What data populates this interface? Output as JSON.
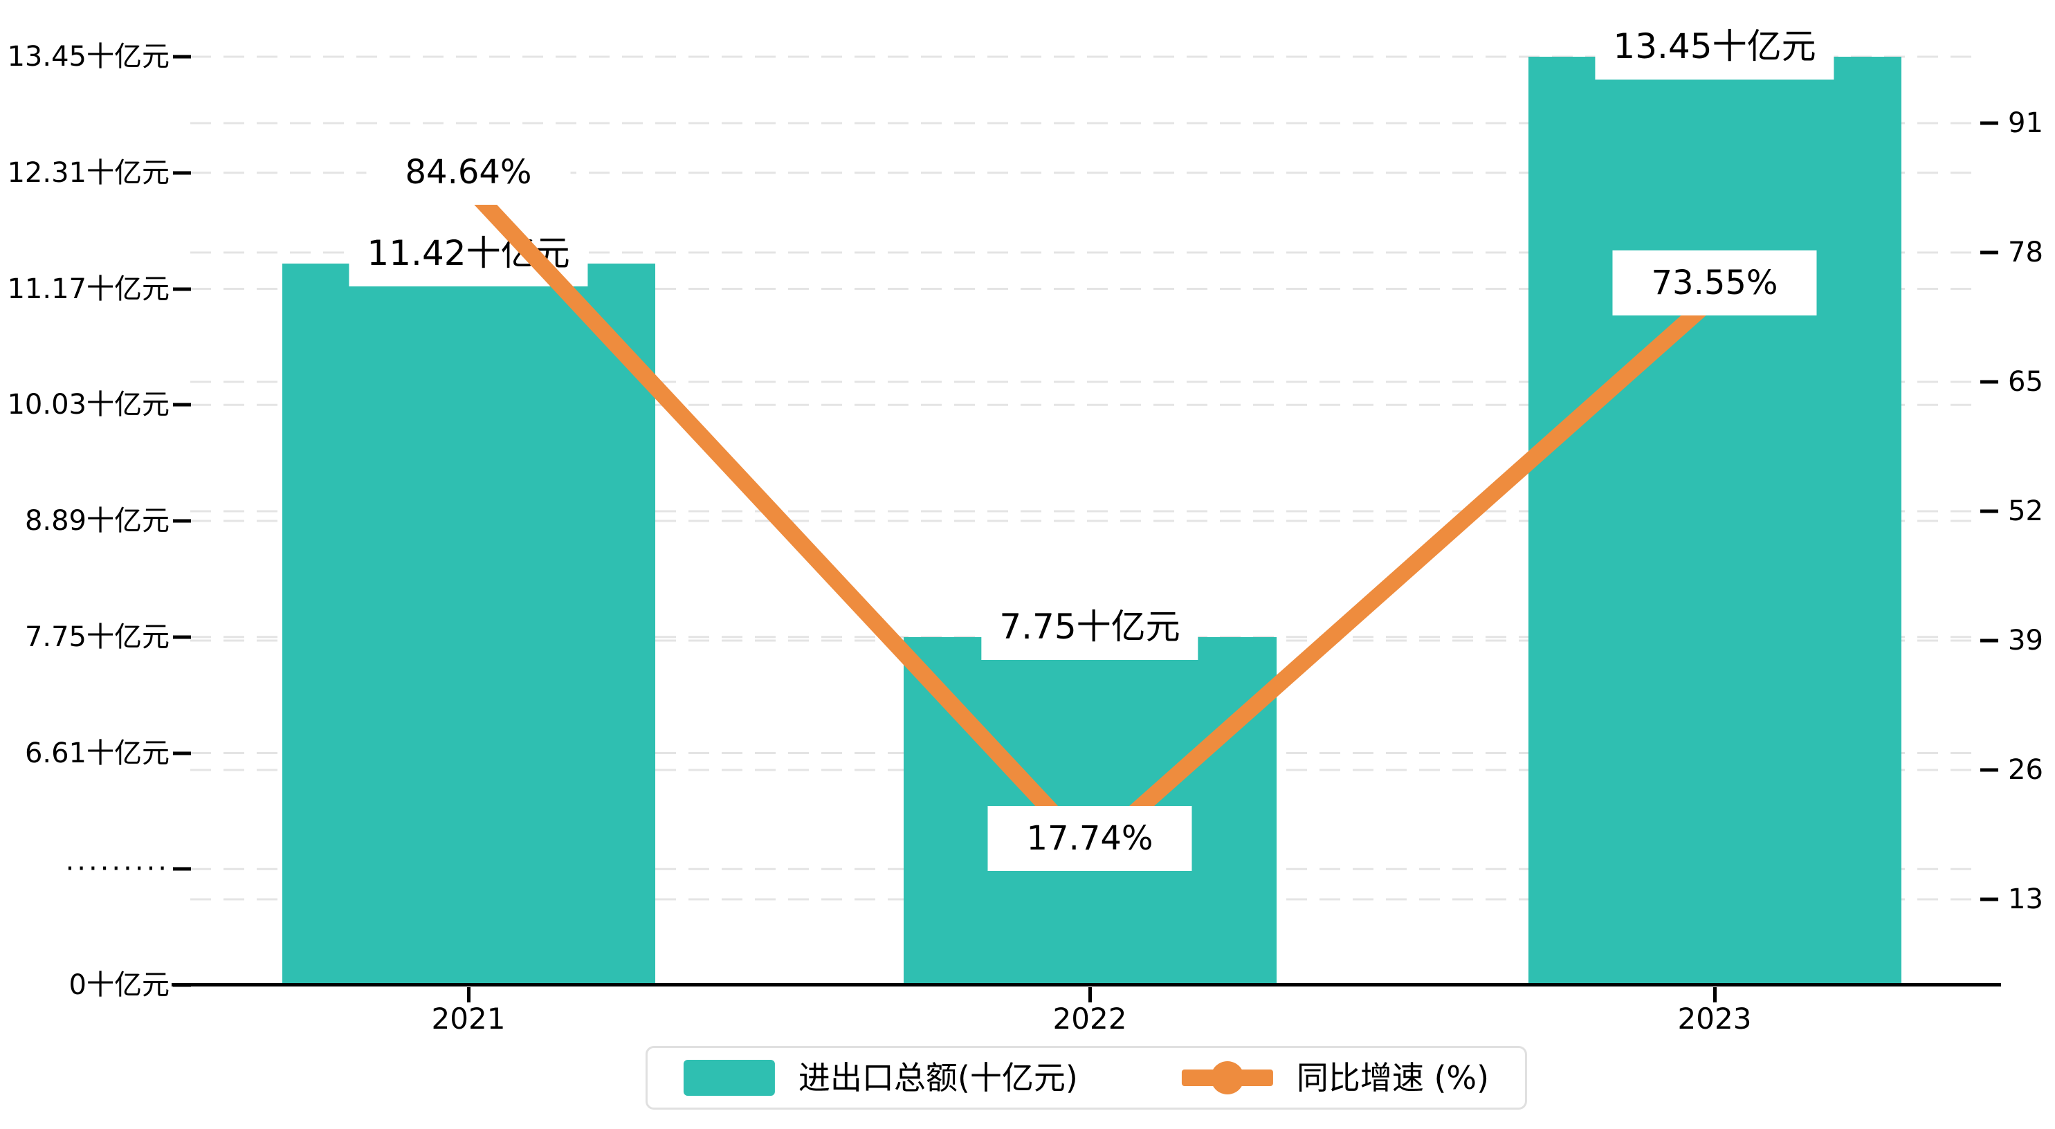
{
  "chart_data": {
    "type": "bar+line combo, broken left value axis",
    "categories": [
      "2021",
      "2022",
      "2023"
    ],
    "series": [
      {
        "name": "进出口总额(十亿元)",
        "type": "bar",
        "values": [
          11.42,
          7.75,
          13.45
        ],
        "labels": [
          "11.42十亿元",
          "7.75十亿元",
          "13.45十亿元"
        ],
        "color": "#2fbfb1"
      },
      {
        "name": "同比增速 (%)",
        "type": "line",
        "values": [
          84.64,
          17.74,
          73.55
        ],
        "labels": [
          "84.64%",
          "17.74%",
          "73.55%"
        ],
        "color": "#ee8c3e"
      }
    ],
    "left_axis": {
      "unit": "十亿元",
      "tick_labels": [
        "13.45十亿元",
        "12.31十亿元",
        "11.17十亿元",
        "10.03十亿元",
        "8.89十亿元",
        "7.75十亿元",
        "6.61十亿元",
        "·········",
        "0十亿元"
      ],
      "tick_values": [
        13.45,
        12.31,
        11.17,
        10.03,
        8.89,
        7.75,
        6.61,
        null,
        0
      ],
      "axis_break": true,
      "break_symbol": "·········",
      "range_top": 13.45,
      "step": 1.14
    },
    "right_axis": {
      "unit": "%",
      "tick_labels": [
        "91",
        "78",
        "65",
        "52",
        "39",
        "26",
        "13"
      ],
      "tick_values": [
        91,
        78,
        65,
        52,
        39,
        26,
        13
      ],
      "step": 13
    },
    "legend": {
      "items": [
        "进出口总额(十亿元)",
        "同比增速 (%)"
      ],
      "position": "bottom-center"
    },
    "grid": {
      "dashed": true,
      "gridline_color": "#e4e4e4"
    },
    "colors": {
      "bar": "#2fbfb1",
      "line": "#ee8c3e",
      "text": "#000000",
      "axis": "#000000",
      "label_background": "#ffffff",
      "legend_border": "#e0e0e0",
      "background": "#ffffff"
    }
  }
}
